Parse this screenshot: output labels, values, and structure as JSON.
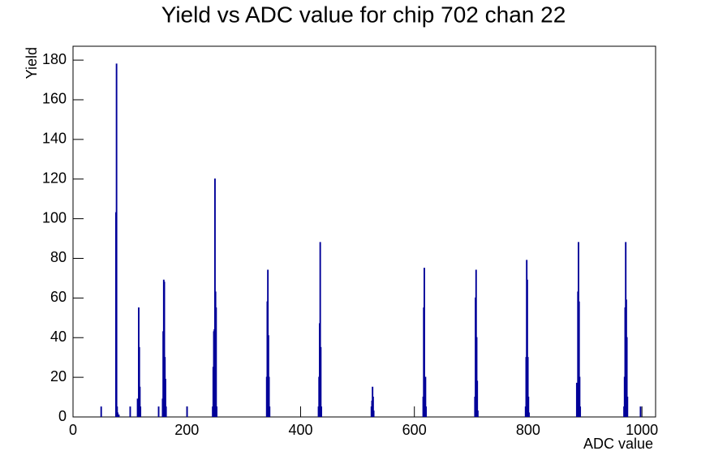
{
  "chart_data": {
    "type": "step",
    "title": "Yield vs ADC value for chip 702 chan 22",
    "x_label": "ADC value",
    "y_label": "Yield",
    "color": "#000099",
    "xlim": [
      0,
      1024
    ],
    "ylim": [
      0,
      187
    ],
    "xticks": [
      0,
      200,
      400,
      600,
      800,
      1000
    ],
    "yticks": [
      0,
      20,
      40,
      60,
      80,
      100,
      120,
      140,
      160,
      180
    ],
    "x": [
      49,
      75,
      76,
      77,
      78,
      80,
      100,
      113,
      114,
      115,
      116,
      117,
      118,
      150,
      157,
      158,
      159,
      160,
      161,
      162,
      163,
      200,
      245,
      246,
      247,
      248,
      249,
      250,
      251,
      252,
      340,
      341,
      342,
      343,
      344,
      345,
      431,
      432,
      433,
      434,
      435,
      436,
      524,
      525,
      526,
      527,
      528,
      615,
      616,
      617,
      618,
      619,
      620,
      706,
      707,
      708,
      709,
      710,
      711,
      795,
      796,
      797,
      798,
      799,
      800,
      801,
      885,
      886,
      887,
      888,
      889,
      890,
      891,
      968,
      969,
      970,
      971,
      972,
      973,
      974,
      997
    ],
    "values": [
      5,
      103,
      178,
      5,
      2,
      1,
      5,
      9,
      5,
      55,
      35,
      15,
      5,
      5,
      9,
      43,
      69,
      68,
      30,
      19,
      5,
      5,
      5,
      25,
      43,
      44,
      120,
      63,
      55,
      5,
      20,
      58,
      74,
      41,
      20,
      5,
      5,
      20,
      47,
      88,
      35,
      5,
      5,
      8,
      15,
      10,
      3,
      10,
      55,
      75,
      6,
      20,
      5,
      10,
      60,
      74,
      40,
      18,
      3,
      5,
      30,
      79,
      69,
      30,
      10,
      2,
      17,
      12,
      63,
      88,
      58,
      20,
      5,
      5,
      20,
      55,
      88,
      59,
      40,
      10,
      5
    ]
  }
}
